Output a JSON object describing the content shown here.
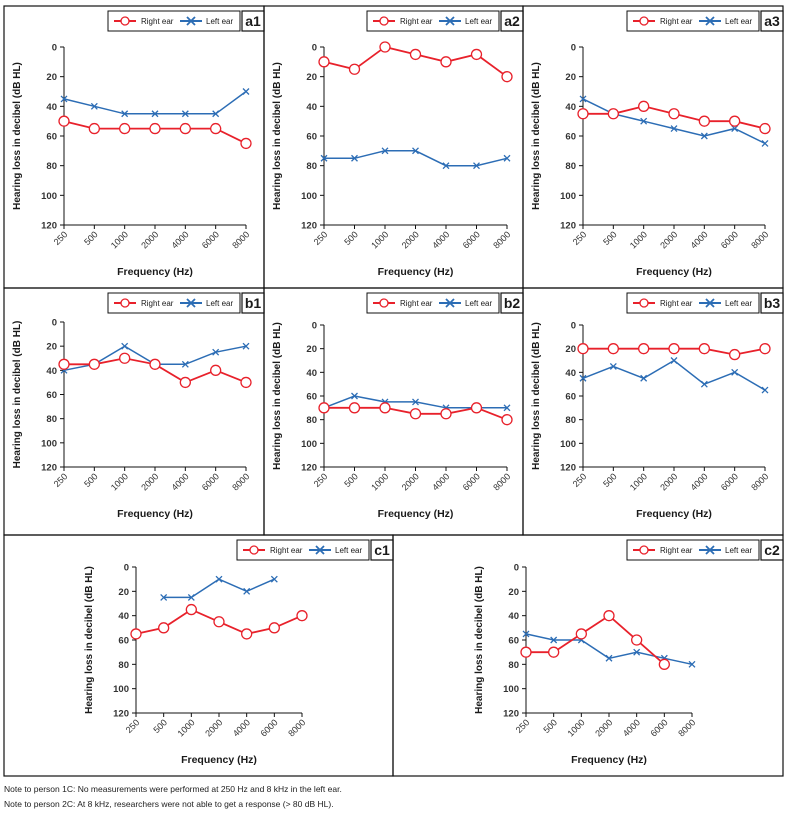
{
  "figure": {
    "colors": {
      "right": "#e8212b",
      "left": "#2c6db5",
      "frame": "#111111",
      "text": "#1a1a1a"
    },
    "notes": [
      "Note to person 1C: No measurements were performed at 250 Hz and 8 kHz in the left ear.",
      "Note to person 2C: At 8 kHz, researchers were not able to get a response (> 80 dB HL)."
    ]
  },
  "chart_data": [
    {
      "id": "a1",
      "type": "line",
      "panel_label": "a1",
      "title": "",
      "xlabel": "Frequency (Hz)",
      "ylabel": "Hearing loss in decibel (dB HL)",
      "categories": [
        "250",
        "500",
        "1000",
        "2000",
        "4000",
        "6000",
        "8000"
      ],
      "ylim": [
        0,
        120
      ],
      "y_inverted": true,
      "yticks": [
        0,
        20,
        40,
        60,
        80,
        100,
        120
      ],
      "legend": [
        "Right ear",
        "Left ear"
      ],
      "legend_position": "top-right",
      "series": [
        {
          "name": "Right ear",
          "marker": "circle",
          "values": [
            50,
            55,
            55,
            55,
            55,
            55,
            65
          ]
        },
        {
          "name": "Left ear",
          "marker": "x",
          "values": [
            35,
            40,
            45,
            45,
            45,
            45,
            30
          ]
        }
      ]
    },
    {
      "id": "a2",
      "type": "line",
      "panel_label": "a2",
      "title": "",
      "xlabel": "Frequency (Hz)",
      "ylabel": "Hearing loss in decibel (dB HL)",
      "categories": [
        "250",
        "500",
        "1000",
        "2000",
        "4000",
        "6000",
        "8000"
      ],
      "ylim": [
        0,
        120
      ],
      "y_inverted": true,
      "yticks": [
        0,
        20,
        40,
        60,
        80,
        100,
        120
      ],
      "legend": [
        "Right ear",
        "Left ear"
      ],
      "legend_position": "top-right",
      "series": [
        {
          "name": "Right ear",
          "marker": "circle",
          "values": [
            10,
            15,
            0,
            5,
            10,
            5,
            20
          ]
        },
        {
          "name": "Left ear",
          "marker": "x",
          "values": [
            75,
            75,
            70,
            70,
            80,
            80,
            75
          ]
        }
      ]
    },
    {
      "id": "a3",
      "type": "line",
      "panel_label": "a3",
      "title": "",
      "xlabel": "Frequency (Hz)",
      "ylabel": "Hearing loss in decibel (dB HL)",
      "categories": [
        "250",
        "500",
        "1000",
        "2000",
        "4000",
        "6000",
        "8000"
      ],
      "ylim": [
        0,
        120
      ],
      "y_inverted": true,
      "yticks": [
        0,
        20,
        40,
        60,
        80,
        100,
        120
      ],
      "legend": [
        "Right ear",
        "Left ear"
      ],
      "legend_position": "top-right",
      "series": [
        {
          "name": "Right ear",
          "marker": "circle",
          "values": [
            45,
            45,
            40,
            45,
            50,
            50,
            55
          ]
        },
        {
          "name": "Left ear",
          "marker": "x",
          "values": [
            35,
            45,
            50,
            55,
            60,
            55,
            65
          ]
        }
      ]
    },
    {
      "id": "b1",
      "type": "line",
      "panel_label": "b1",
      "title": "",
      "xlabel": "Frequency (Hz)",
      "ylabel": "Hearing loss in decibel (dB HL)",
      "categories": [
        "250",
        "500",
        "1000",
        "2000",
        "4000",
        "6000",
        "8000"
      ],
      "ylim": [
        0,
        120
      ],
      "y_inverted": true,
      "yticks": [
        0,
        20,
        40,
        60,
        80,
        100,
        120
      ],
      "legend": [
        "Right ear",
        "Left ear"
      ],
      "legend_position": "top-right",
      "series": [
        {
          "name": "Right ear",
          "marker": "circle",
          "values": [
            35,
            35,
            30,
            35,
            50,
            40,
            50
          ]
        },
        {
          "name": "Left ear",
          "marker": "x",
          "values": [
            40,
            35,
            20,
            35,
            35,
            25,
            20
          ]
        }
      ]
    },
    {
      "id": "b2",
      "type": "line",
      "panel_label": "b2",
      "title": "",
      "xlabel": "Frequency (Hz)",
      "ylabel": "Hearing loss in decibel (dB HL)",
      "categories": [
        "250",
        "500",
        "1000",
        "2000",
        "4000",
        "6000",
        "8000"
      ],
      "ylim": [
        0,
        120
      ],
      "y_inverted": true,
      "yticks": [
        0,
        20,
        40,
        60,
        80,
        100,
        120
      ],
      "legend": [
        "Right ear",
        "Left ear"
      ],
      "legend_position": "top-right",
      "series": [
        {
          "name": "Right ear",
          "marker": "circle",
          "values": [
            70,
            70,
            70,
            75,
            75,
            70,
            80
          ]
        },
        {
          "name": "Left ear",
          "marker": "x",
          "values": [
            70,
            60,
            65,
            65,
            70,
            70,
            70
          ]
        }
      ]
    },
    {
      "id": "b3",
      "type": "line",
      "panel_label": "b3",
      "title": "",
      "xlabel": "Frequency (Hz)",
      "ylabel": "Hearing loss in decibel (dB HL)",
      "categories": [
        "250",
        "500",
        "1000",
        "2000",
        "4000",
        "6000",
        "8000"
      ],
      "ylim": [
        0,
        120
      ],
      "y_inverted": true,
      "yticks": [
        0,
        20,
        40,
        60,
        80,
        100,
        120
      ],
      "legend": [
        "Right ear",
        "Left ear"
      ],
      "legend_position": "top-right",
      "series": [
        {
          "name": "Right ear",
          "marker": "circle",
          "values": [
            20,
            20,
            20,
            20,
            20,
            25,
            20
          ]
        },
        {
          "name": "Left ear",
          "marker": "x",
          "values": [
            45,
            35,
            45,
            30,
            50,
            40,
            55
          ]
        }
      ]
    },
    {
      "id": "c1",
      "type": "line",
      "panel_label": "c1",
      "title": "",
      "xlabel": "Frequency (Hz)",
      "ylabel": "Hearing loss in decibel (dB HL)",
      "categories": [
        "250",
        "500",
        "1000",
        "2000",
        "4000",
        "6000",
        "8000"
      ],
      "ylim": [
        0,
        120
      ],
      "y_inverted": true,
      "yticks": [
        0,
        20,
        40,
        60,
        80,
        100,
        120
      ],
      "legend": [
        "Right ear",
        "Left ear"
      ],
      "legend_position": "top-right",
      "series": [
        {
          "name": "Right ear",
          "marker": "circle",
          "values": [
            55,
            50,
            35,
            45,
            55,
            50,
            40
          ]
        },
        {
          "name": "Left ear",
          "marker": "x",
          "values": [
            null,
            25,
            25,
            10,
            20,
            10,
            null
          ]
        }
      ]
    },
    {
      "id": "c2",
      "type": "line",
      "panel_label": "c2",
      "title": "",
      "xlabel": "Frequency (Hz)",
      "ylabel": "Hearing loss in decibel (dB HL)",
      "categories": [
        "250",
        "500",
        "1000",
        "2000",
        "4000",
        "6000",
        "8000"
      ],
      "ylim": [
        0,
        120
      ],
      "y_inverted": true,
      "yticks": [
        0,
        20,
        40,
        60,
        80,
        100,
        120
      ],
      "legend": [
        "Right ear",
        "Left ear"
      ],
      "legend_position": "top-right",
      "series": [
        {
          "name": "Right ear",
          "marker": "circle",
          "values": [
            70,
            70,
            55,
            40,
            60,
            80,
            null
          ]
        },
        {
          "name": "Left ear",
          "marker": "x",
          "values": [
            55,
            60,
            60,
            75,
            70,
            75,
            80
          ]
        }
      ]
    }
  ]
}
